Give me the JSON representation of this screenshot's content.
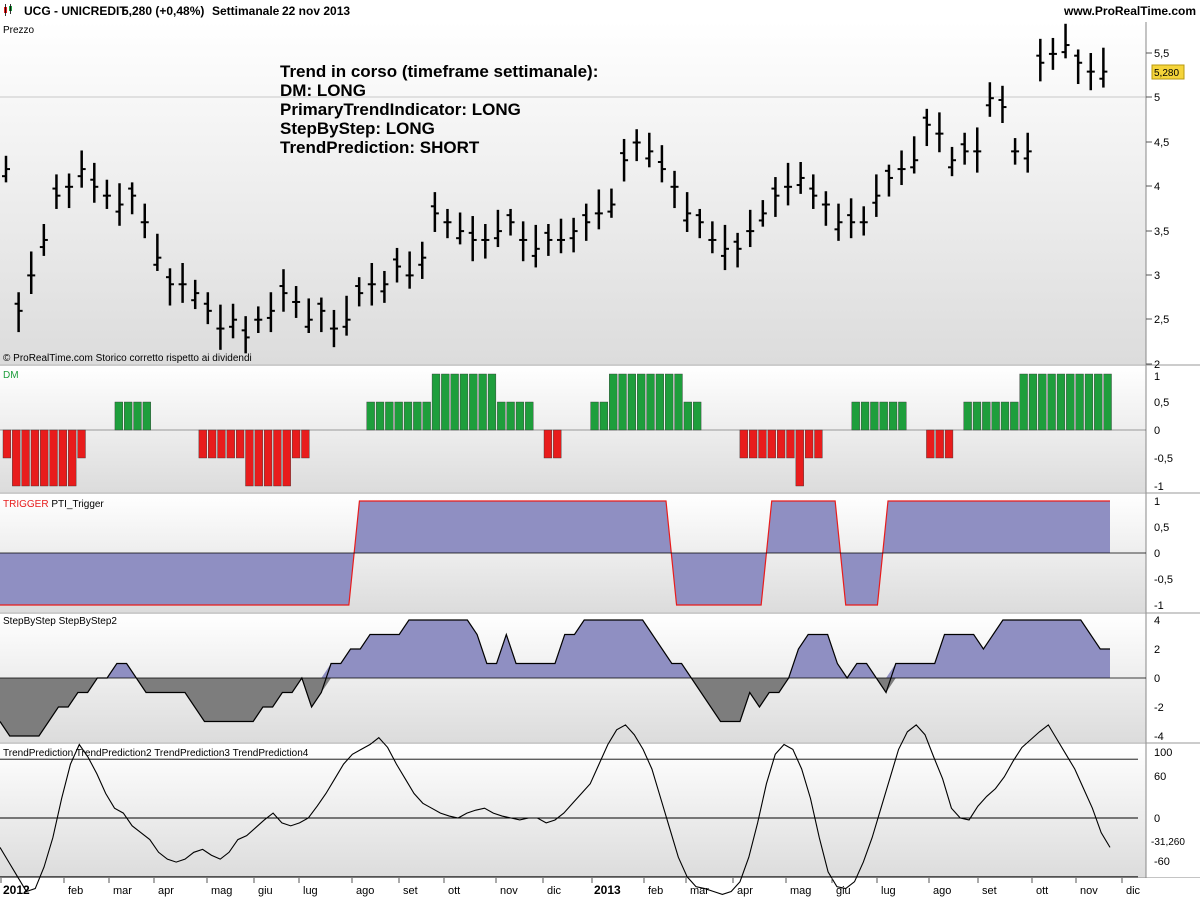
{
  "header": {
    "symbol": "UCG - UNICREDIT",
    "quote": "5,280 (+0,48%)",
    "period": "Settimanale",
    "date": "22 nov 2013",
    "website": "www.ProRealTime.com"
  },
  "price_panel": {
    "label": "Prezzo",
    "copyright": "© ProRealTime.com  Storico corretto rispetto ai dividendi",
    "y_ticks": [
      "5,5",
      "5",
      "4,5",
      "4",
      "3,5",
      "3",
      "2,5",
      "2"
    ],
    "last_price": "5,280",
    "annotation": [
      "Trend in corso (timeframe settimanale):",
      "DM: LONG",
      "PrimaryTrendIndicator: LONG",
      "StepByStep: LONG",
      "TrendPrediction: SHORT"
    ]
  },
  "dm_panel": {
    "label": "DM",
    "y_ticks": [
      "1",
      "0,5",
      "0",
      "-0,5",
      "-1"
    ],
    "colors": {
      "positive": "#1e9e3c",
      "negative": "#e81c1c"
    },
    "values": [
      -0.5,
      -1,
      -1,
      -1,
      -1,
      -1,
      -1,
      -1,
      -0.5,
      0,
      0,
      0,
      0.5,
      0.5,
      0.5,
      0.5,
      0,
      0,
      0,
      0,
      0,
      -0.5,
      -0.5,
      -0.5,
      -0.5,
      -0.5,
      -1,
      -1,
      -1,
      -1,
      -1,
      -0.5,
      -0.5,
      0,
      0,
      0,
      0,
      0,
      0,
      0.5,
      0.5,
      0.5,
      0.5,
      0.5,
      0.5,
      0.5,
      1,
      1,
      1,
      1,
      1,
      1,
      1,
      0.5,
      0.5,
      0.5,
      0.5,
      0,
      -0.5,
      -0.5,
      0,
      0,
      0,
      0.5,
      0.5,
      1,
      1,
      1,
      1,
      1,
      1,
      1,
      1,
      0.5,
      0.5,
      0,
      0,
      0,
      0,
      -0.5,
      -0.5,
      -0.5,
      -0.5,
      -0.5,
      -0.5,
      -1,
      -0.5,
      -0.5,
      0,
      0,
      0,
      0.5,
      0.5,
      0.5,
      0.5,
      0.5,
      0.5,
      0,
      0,
      -0.5,
      -0.5,
      -0.5,
      0,
      0.5,
      0.5,
      0.5,
      0.5,
      0.5,
      0.5,
      1,
      1,
      1,
      1,
      1,
      1,
      1,
      1,
      1,
      1
    ]
  },
  "trigger_panel": {
    "label_main": "TRIGGER",
    "label_series": "PTI_Trigger",
    "y_ticks": [
      "1",
      "0,5",
      "0",
      "-0,5",
      "-1"
    ],
    "values": [
      -1,
      -1,
      -1,
      -1,
      -1,
      -1,
      -1,
      -1,
      -1,
      -1,
      -1,
      -1,
      -1,
      -1,
      -1,
      -1,
      -1,
      -1,
      -1,
      -1,
      -1,
      -1,
      -1,
      -1,
      -1,
      -1,
      -1,
      -1,
      -1,
      -1,
      -1,
      -1,
      -1,
      -1,
      1,
      1,
      1,
      1,
      1,
      1,
      1,
      1,
      1,
      1,
      1,
      1,
      1,
      1,
      1,
      1,
      1,
      1,
      1,
      1,
      1,
      1,
      1,
      1,
      1,
      1,
      1,
      1,
      1,
      1,
      -1,
      -1,
      -1,
      -1,
      -1,
      -1,
      -1,
      -1,
      -1,
      1,
      1,
      1,
      1,
      1,
      1,
      1,
      -1,
      -1,
      -1,
      -1,
      1,
      1,
      1,
      1,
      1,
      1,
      1,
      1,
      1,
      1,
      1,
      1,
      1,
      1,
      1,
      1,
      1,
      1,
      1,
      1,
      1,
      1
    ]
  },
  "step_panel": {
    "label": "StepByStep StepByStep2",
    "y_ticks": [
      "4",
      "2",
      "0",
      "-2",
      "-4"
    ],
    "values": [
      -3,
      -4,
      -4,
      -4,
      -4,
      -3,
      -2,
      -2,
      -1,
      -1,
      0,
      0,
      1,
      1,
      0,
      -1,
      -1,
      -1,
      -1,
      -1,
      -2,
      -3,
      -3,
      -3,
      -3,
      -3,
      -3,
      -2,
      -2,
      -1,
      -1,
      0,
      -2,
      -1,
      1,
      1,
      2,
      2,
      3,
      3,
      3,
      3,
      4,
      4,
      4,
      4,
      4,
      4,
      4,
      3,
      1,
      1,
      3,
      1,
      1,
      1,
      1,
      1,
      3,
      3,
      4,
      4,
      4,
      4,
      4,
      4,
      4,
      3,
      2,
      1,
      1,
      0,
      -1,
      -2,
      -3,
      -3,
      -3,
      -1,
      -2,
      -1,
      -1,
      0,
      2,
      3,
      3,
      3,
      1,
      0,
      1,
      1,
      0,
      -1,
      1,
      1,
      1,
      1,
      1,
      3,
      3,
      3,
      3,
      2,
      3,
      4,
      4,
      4,
      4,
      4,
      4,
      4,
      4,
      4,
      3,
      2,
      2
    ]
  },
  "tp_panel": {
    "label": "TrendPrediction TrendPrediction2 TrendPrediction3 TrendPrediction4",
    "y_ticks": [
      "100",
      "60",
      "0",
      "-60"
    ],
    "last_value": "-31,260",
    "levels": {
      "upper": 60,
      "middle": 0,
      "lower": -60
    },
    "values": [
      -30,
      -45,
      -60,
      -75,
      -72,
      -50,
      -20,
      20,
      55,
      75,
      62,
      45,
      25,
      10,
      5,
      -8,
      -15,
      -22,
      -35,
      -42,
      -45,
      -42,
      -35,
      -32,
      -38,
      -42,
      -35,
      -22,
      -18,
      -10,
      -2,
      5,
      -5,
      -8,
      -5,
      0,
      12,
      25,
      40,
      55,
      65,
      70,
      75,
      82,
      72,
      55,
      40,
      25,
      15,
      10,
      5,
      2,
      0,
      5,
      8,
      10,
      5,
      2,
      0,
      -2,
      0,
      0,
      -5,
      -2,
      5,
      15,
      25,
      35,
      55,
      75,
      90,
      95,
      85,
      70,
      50,
      20,
      -10,
      -40,
      -60,
      -70,
      -72,
      -75,
      -78,
      -75,
      -65,
      -40,
      -5,
      35,
      65,
      75,
      70,
      50,
      20,
      -20,
      -55,
      -70,
      -72,
      -65,
      -45,
      -20,
      10,
      40,
      70,
      88,
      95,
      85,
      62,
      40,
      10,
      0,
      -2,
      12,
      22,
      30,
      42,
      58,
      72,
      80,
      88,
      95,
      80,
      65,
      50,
      30,
      10,
      -15,
      -30
    ]
  },
  "x_axis": {
    "labels": [
      "2012",
      "feb",
      "mar",
      "apr",
      "mag",
      "giu",
      "lug",
      "ago",
      "set",
      "ott",
      "nov",
      "dic",
      "2013",
      "feb",
      "mar",
      "apr",
      "mag",
      "giu",
      "lug",
      "ago",
      "set",
      "ott",
      "nov",
      "dic"
    ],
    "bold": [
      "2012",
      "2013"
    ]
  }
}
